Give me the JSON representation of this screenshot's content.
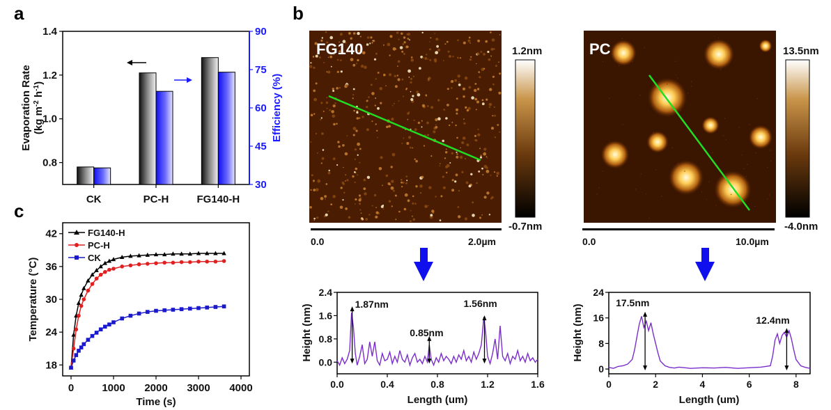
{
  "panels": {
    "a": "a",
    "b": "b",
    "c": "c"
  },
  "chart_data": [
    {
      "id": "a",
      "type": "bar",
      "title": "",
      "categories": [
        "CK",
        "PC-H",
        "FG140-H"
      ],
      "series": [
        {
          "name": "Evaporation Rate",
          "axis": "left",
          "values": [
            0.78,
            1.21,
            1.28
          ],
          "color": "#3a3a3a"
        },
        {
          "name": "Efficiency",
          "axis": "right",
          "values": [
            36.5,
            66.5,
            74.0
          ],
          "color": "#1a1aff"
        }
      ],
      "ylabel": "Evaporation Rate (kg m-2 h-1)",
      "ylabel_line1": "Evaporation Rate",
      "ylabel_line2": "(kg m",
      "ylabel_sup1": "-2",
      "ylabel_mid": " h",
      "ylabel_sup2": "-1",
      "ylabel_end": ")",
      "ylim": [
        0.7,
        1.4
      ],
      "yticks": [
        "0.8",
        "1.0",
        "1.2",
        "1.4"
      ],
      "y2label": "Efficiency (%)",
      "y2lim": [
        30,
        90
      ],
      "y2ticks": [
        "30",
        "45",
        "60",
        "75",
        "90"
      ]
    },
    {
      "id": "c",
      "type": "line",
      "xlabel": "Time (s)",
      "ylabel": "Temperature (°C)",
      "xlim": [
        0,
        4000
      ],
      "ylim": [
        16,
        44
      ],
      "xticks": [
        "0",
        "1000",
        "2000",
        "3000",
        "4000"
      ],
      "yticks": [
        "18",
        "24",
        "30",
        "36",
        "42"
      ],
      "series": [
        {
          "name": "FG140-H",
          "color": "#000000",
          "marker": "triangle",
          "x": [
            0,
            60,
            120,
            180,
            240,
            300,
            400,
            500,
            600,
            700,
            800,
            900,
            1000,
            1200,
            1400,
            1600,
            1800,
            2000,
            2200,
            2400,
            2600,
            2800,
            3000,
            3200,
            3400,
            3600
          ],
          "y": [
            17.5,
            23.5,
            27.0,
            29.3,
            30.8,
            32.0,
            33.4,
            34.5,
            35.3,
            36.0,
            36.6,
            37.0,
            37.3,
            37.7,
            37.9,
            38.0,
            38.1,
            38.2,
            38.2,
            38.3,
            38.3,
            38.3,
            38.4,
            38.4,
            38.4,
            38.4
          ]
        },
        {
          "name": "PC-H",
          "color": "#e02020",
          "marker": "circle",
          "x": [
            0,
            60,
            120,
            180,
            240,
            300,
            400,
            500,
            600,
            700,
            800,
            900,
            1000,
            1200,
            1400,
            1600,
            1800,
            2000,
            2200,
            2400,
            2600,
            2800,
            3000,
            3200,
            3400,
            3600
          ],
          "y": [
            17.5,
            21.0,
            24.5,
            27.0,
            28.8,
            30.0,
            31.6,
            32.8,
            33.8,
            34.5,
            35.0,
            35.4,
            35.6,
            36.0,
            36.2,
            36.4,
            36.5,
            36.6,
            36.7,
            36.7,
            36.8,
            36.8,
            36.9,
            36.9,
            36.9,
            37.0
          ]
        },
        {
          "name": "CK",
          "color": "#1a1acc",
          "marker": "square",
          "x": [
            0,
            60,
            120,
            180,
            240,
            300,
            400,
            500,
            600,
            700,
            800,
            900,
            1000,
            1200,
            1400,
            1600,
            1800,
            2000,
            2200,
            2400,
            2600,
            2800,
            3000,
            3200,
            3400,
            3600
          ],
          "y": [
            17.5,
            18.8,
            19.8,
            20.6,
            21.2,
            21.8,
            22.6,
            23.3,
            23.9,
            24.5,
            25.0,
            25.4,
            25.8,
            26.5,
            27.0,
            27.4,
            27.7,
            27.9,
            28.0,
            28.1,
            28.2,
            28.3,
            28.4,
            28.5,
            28.6,
            28.7
          ]
        }
      ]
    },
    {
      "id": "b-left-profile",
      "type": "line",
      "xlabel": "Length (um)",
      "ylabel": "Height  (nm)",
      "xlim": [
        0,
        1.6
      ],
      "ylim": [
        -0.4,
        2.4
      ],
      "xticks": [
        "0.0",
        "0.4",
        "0.8",
        "1.2",
        "1.6"
      ],
      "yticks": [
        "0.0",
        "0.8",
        "1.6",
        "2.4"
      ],
      "annotations": [
        "1.87nm",
        "0.85nm",
        "1.56nm"
      ],
      "series": [
        {
          "name": "profile",
          "color": "#7a2dcc",
          "x": [
            0.0,
            0.02,
            0.04,
            0.06,
            0.08,
            0.1,
            0.115,
            0.13,
            0.145,
            0.16,
            0.18,
            0.2,
            0.22,
            0.24,
            0.26,
            0.28,
            0.3,
            0.32,
            0.34,
            0.36,
            0.38,
            0.4,
            0.42,
            0.44,
            0.46,
            0.48,
            0.5,
            0.52,
            0.54,
            0.56,
            0.58,
            0.6,
            0.62,
            0.64,
            0.66,
            0.68,
            0.7,
            0.72,
            0.735,
            0.75,
            0.77,
            0.79,
            0.81,
            0.83,
            0.85,
            0.87,
            0.89,
            0.91,
            0.93,
            0.95,
            0.97,
            0.99,
            1.01,
            1.03,
            1.05,
            1.07,
            1.09,
            1.11,
            1.13,
            1.15,
            1.17,
            1.185,
            1.2,
            1.22,
            1.24,
            1.26,
            1.28,
            1.3,
            1.32,
            1.34,
            1.36,
            1.38,
            1.4,
            1.42,
            1.44,
            1.46,
            1.48,
            1.5,
            1.52,
            1.54,
            1.56,
            1.58,
            1.6
          ],
          "y": [
            0.05,
            -0.1,
            0.15,
            -0.05,
            0.1,
            0.4,
            1.7,
            1.2,
            0.3,
            -0.1,
            0.2,
            0.6,
            -0.05,
            0.1,
            0.7,
            0.2,
            0.7,
            0.05,
            -0.1,
            0.3,
            0.05,
            0.1,
            0.35,
            -0.05,
            0.2,
            0.0,
            0.4,
            0.1,
            0.0,
            0.25,
            -0.1,
            0.15,
            0.3,
            0.0,
            0.1,
            -0.05,
            0.2,
            0.0,
            0.6,
            0.1,
            -0.1,
            0.15,
            0.0,
            0.3,
            0.05,
            0.2,
            0.1,
            -0.05,
            0.2,
            0.0,
            0.25,
            0.1,
            0.4,
            0.05,
            0.2,
            0.0,
            0.35,
            0.1,
            0.3,
            0.6,
            1.55,
            1.0,
            0.2,
            -0.05,
            0.3,
            0.8,
            0.1,
            1.25,
            0.2,
            0.05,
            0.3,
            -0.05,
            0.2,
            0.1,
            0.4,
            0.05,
            0.2,
            0.0,
            0.3,
            0.05,
            0.15,
            0.0,
            0.1
          ]
        }
      ]
    },
    {
      "id": "b-right-profile",
      "type": "line",
      "xlabel": "Length (um)",
      "ylabel": "Height  (nm)",
      "xlim": [
        0,
        8.6
      ],
      "ylim": [
        -1.5,
        24
      ],
      "xticks": [
        "0",
        "2",
        "4",
        "6",
        "8"
      ],
      "yticks": [
        "0",
        "8",
        "16",
        "24"
      ],
      "annotations": [
        "17.5nm",
        "12.4nm"
      ],
      "series": [
        {
          "name": "profile",
          "color": "#7a2dcc",
          "x": [
            0.0,
            0.2,
            0.4,
            0.6,
            0.8,
            1.0,
            1.1,
            1.2,
            1.3,
            1.4,
            1.5,
            1.6,
            1.7,
            1.8,
            1.9,
            2.0,
            2.1,
            2.2,
            2.4,
            2.6,
            2.8,
            3.0,
            3.5,
            4.0,
            4.5,
            5.0,
            5.5,
            6.0,
            6.5,
            6.9,
            7.0,
            7.1,
            7.2,
            7.3,
            7.4,
            7.5,
            7.6,
            7.7,
            7.8,
            7.9,
            8.0,
            8.2,
            8.4,
            8.6
          ],
          "y": [
            0.5,
            0.2,
            0.8,
            1.0,
            1.5,
            3.0,
            6.0,
            10.0,
            14.0,
            16.5,
            13.0,
            15.0,
            12.0,
            14.5,
            11.0,
            8.0,
            5.0,
            2.5,
            1.0,
            0.5,
            0.3,
            0.6,
            0.2,
            0.4,
            0.3,
            0.5,
            0.2,
            0.4,
            0.6,
            1.0,
            4.0,
            9.0,
            11.0,
            8.0,
            10.5,
            11.5,
            10.0,
            12.0,
            9.5,
            6.0,
            3.0,
            1.0,
            0.5,
            0.2
          ]
        }
      ]
    }
  ],
  "afm": {
    "left": {
      "label": "FG140",
      "scale_max": "1.2nm",
      "scale_min": "-0.7nm",
      "axis_start": "0.0",
      "axis_end": "2.0µm"
    },
    "right": {
      "label": "PC",
      "scale_max": "13.5nm",
      "scale_min": "-4.0nm",
      "axis_start": "0.0",
      "axis_end": "10.0µm"
    }
  }
}
